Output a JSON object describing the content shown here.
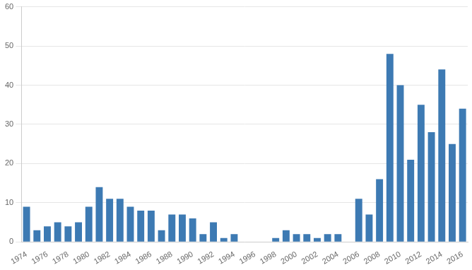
{
  "chart_data": {
    "type": "bar",
    "categories": [
      "1974",
      null,
      "1976",
      null,
      "1978",
      null,
      "1980",
      null,
      "1982",
      null,
      "1984",
      null,
      "1986",
      null,
      "1988",
      null,
      "1990",
      null,
      "1992",
      null,
      "1994",
      null,
      "1996",
      null,
      "1998",
      null,
      "2000",
      null,
      "2002",
      null,
      "2004",
      null,
      "2006",
      null,
      "2008",
      null,
      "2010",
      null,
      "2012",
      null,
      "2014",
      null,
      "2016"
    ],
    "values": [
      9,
      3,
      4,
      5,
      4,
      5,
      9,
      14,
      11,
      11,
      9,
      8,
      8,
      3,
      7,
      7,
      6,
      2,
      5,
      1,
      2,
      0,
      0,
      0,
      1,
      3,
      2,
      2,
      1,
      2,
      2,
      0,
      11,
      7,
      16,
      48,
      40,
      21,
      35,
      28,
      44,
      25,
      34
    ],
    "color": "#3d7ab3",
    "ylim": [
      0,
      60
    ],
    "yticks": [
      0,
      10,
      20,
      30,
      40,
      50,
      60
    ],
    "grid": true
  }
}
